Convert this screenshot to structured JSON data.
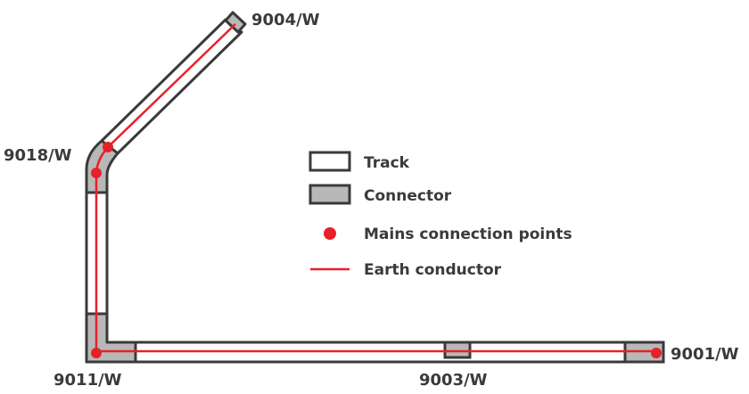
{
  "colors": {
    "outline": "#3a3a3a",
    "track_fill": "#ffffff",
    "connector_fill": "#b8b8b8",
    "earth": "#e8202a",
    "mains_point": "#e8202a"
  },
  "connectors": {
    "c9004": "9004/W",
    "c9018": "9018/W",
    "c9011": "9011/W",
    "c9003": "9003/W",
    "c9001": "9001/W"
  },
  "legend": {
    "track": "Track",
    "connector": "Connector",
    "mains": "Mains connection points",
    "earth": "Earth conductor"
  }
}
